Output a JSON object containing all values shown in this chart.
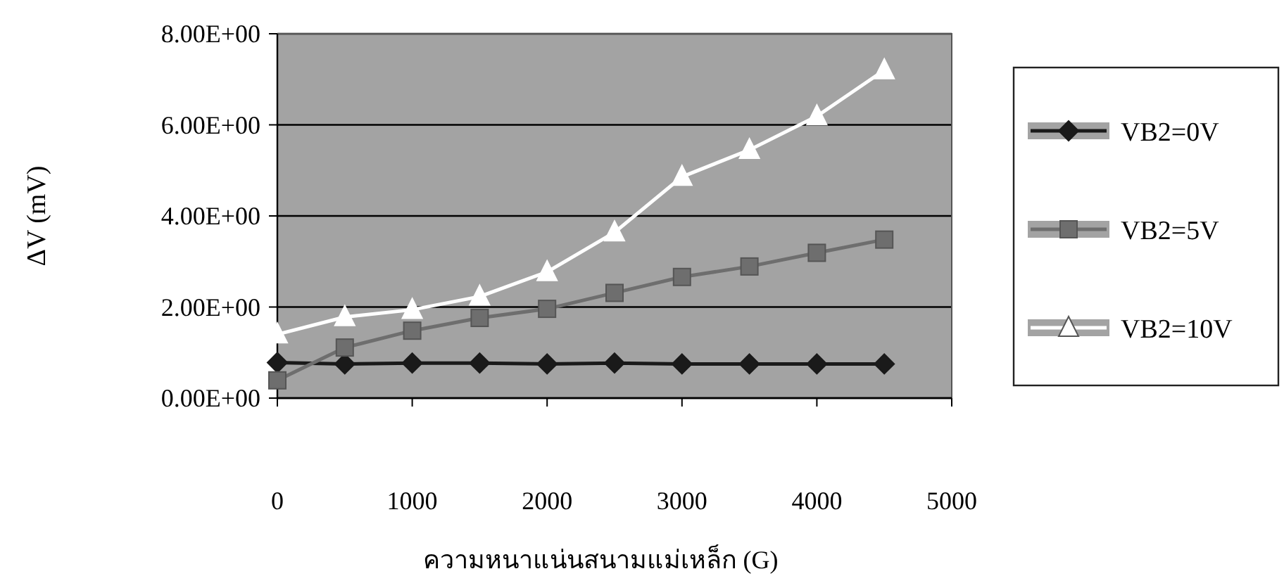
{
  "chart_data": {
    "type": "line",
    "xlabel": "ความหนาแน่นสนามแม่เหล็ก (G)",
    "ylabel": "ΔV (mV)",
    "x": [
      0,
      500,
      1000,
      1500,
      2000,
      2500,
      3000,
      3500,
      4000,
      4500
    ],
    "xlim": [
      0,
      5000
    ],
    "xticks": [
      0,
      1000,
      2000,
      3000,
      4000,
      5000
    ],
    "ylim": [
      0,
      8
    ],
    "yticks": [
      {
        "value": 0,
        "label": "0.00E+00"
      },
      {
        "value": 2,
        "label": "2.00E+00"
      },
      {
        "value": 4,
        "label": "4.00E+00"
      },
      {
        "value": 6,
        "label": "6.00E+00"
      },
      {
        "value": 8,
        "label": "8.00E+00"
      }
    ],
    "grid": "y",
    "legend": "right",
    "series": [
      {
        "name": "VB2=0V",
        "color": "#1a1a1a",
        "marker": "diamond",
        "values": [
          0.78,
          0.75,
          0.77,
          0.77,
          0.75,
          0.77,
          0.75,
          0.75,
          0.75,
          0.75
        ]
      },
      {
        "name": "VB2=5V",
        "color": "#6e6e6e",
        "marker": "square",
        "values": [
          0.39,
          1.11,
          1.48,
          1.76,
          1.96,
          2.31,
          2.66,
          2.89,
          3.19,
          3.48
        ]
      },
      {
        "name": "VB2=10V",
        "color": "#ffffff",
        "marker": "triangle",
        "values": [
          1.4,
          1.78,
          1.94,
          2.23,
          2.77,
          3.64,
          4.86,
          5.45,
          6.19,
          7.2
        ]
      }
    ]
  }
}
